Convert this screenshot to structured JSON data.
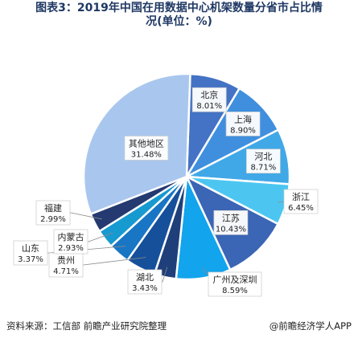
{
  "title_line1": "图表3：2019年中国在用数据中心机架数量分省市占比情",
  "title_line2": "况(单位：%)",
  "chart_data": {
    "type": "pie",
    "title": "图表3：2019年中国在用数据中心机架数量分省市占比情况(单位：%)",
    "unit": "%",
    "slices": [
      {
        "name": "北京",
        "value": 8.01,
        "label": "8.01%",
        "color": "#4472c4"
      },
      {
        "name": "上海",
        "value": 8.9,
        "label": "8.90%",
        "color": "#3f8fde"
      },
      {
        "name": "河北",
        "value": 8.71,
        "label": "8.71%",
        "color": "#41a8e7"
      },
      {
        "name": "浙江",
        "value": 6.45,
        "label": "6.45%",
        "color": "#4cc6f1"
      },
      {
        "name": "江苏",
        "value": 10.43,
        "label": "10.43%",
        "color": "#3b65b5"
      },
      {
        "name": "广州及深圳",
        "value": 8.59,
        "label": "8.59%",
        "color": "#12a4ec"
      },
      {
        "name": "湖北",
        "value": 3.43,
        "label": "3.43%",
        "color": "#1e3f7a"
      },
      {
        "name": "贵州",
        "value": 4.71,
        "label": "4.71%",
        "color": "#16509b"
      },
      {
        "name": "山东",
        "value": 3.37,
        "label": "3.37%",
        "color": "#1876c4"
      },
      {
        "name": "内蒙古",
        "value": 2.93,
        "label": "2.93%",
        "color": "#169ad0"
      },
      {
        "name": "福建",
        "value": 2.99,
        "label": "2.99%",
        "color": "#243a70"
      },
      {
        "name": "其他地区",
        "value": 31.48,
        "label": "31.48%",
        "color": "#a9c7ee"
      }
    ]
  },
  "footer": {
    "source": "资料来源：工信部 前瞻产业研究院整理",
    "brand": "@前瞻经济学人APP"
  }
}
